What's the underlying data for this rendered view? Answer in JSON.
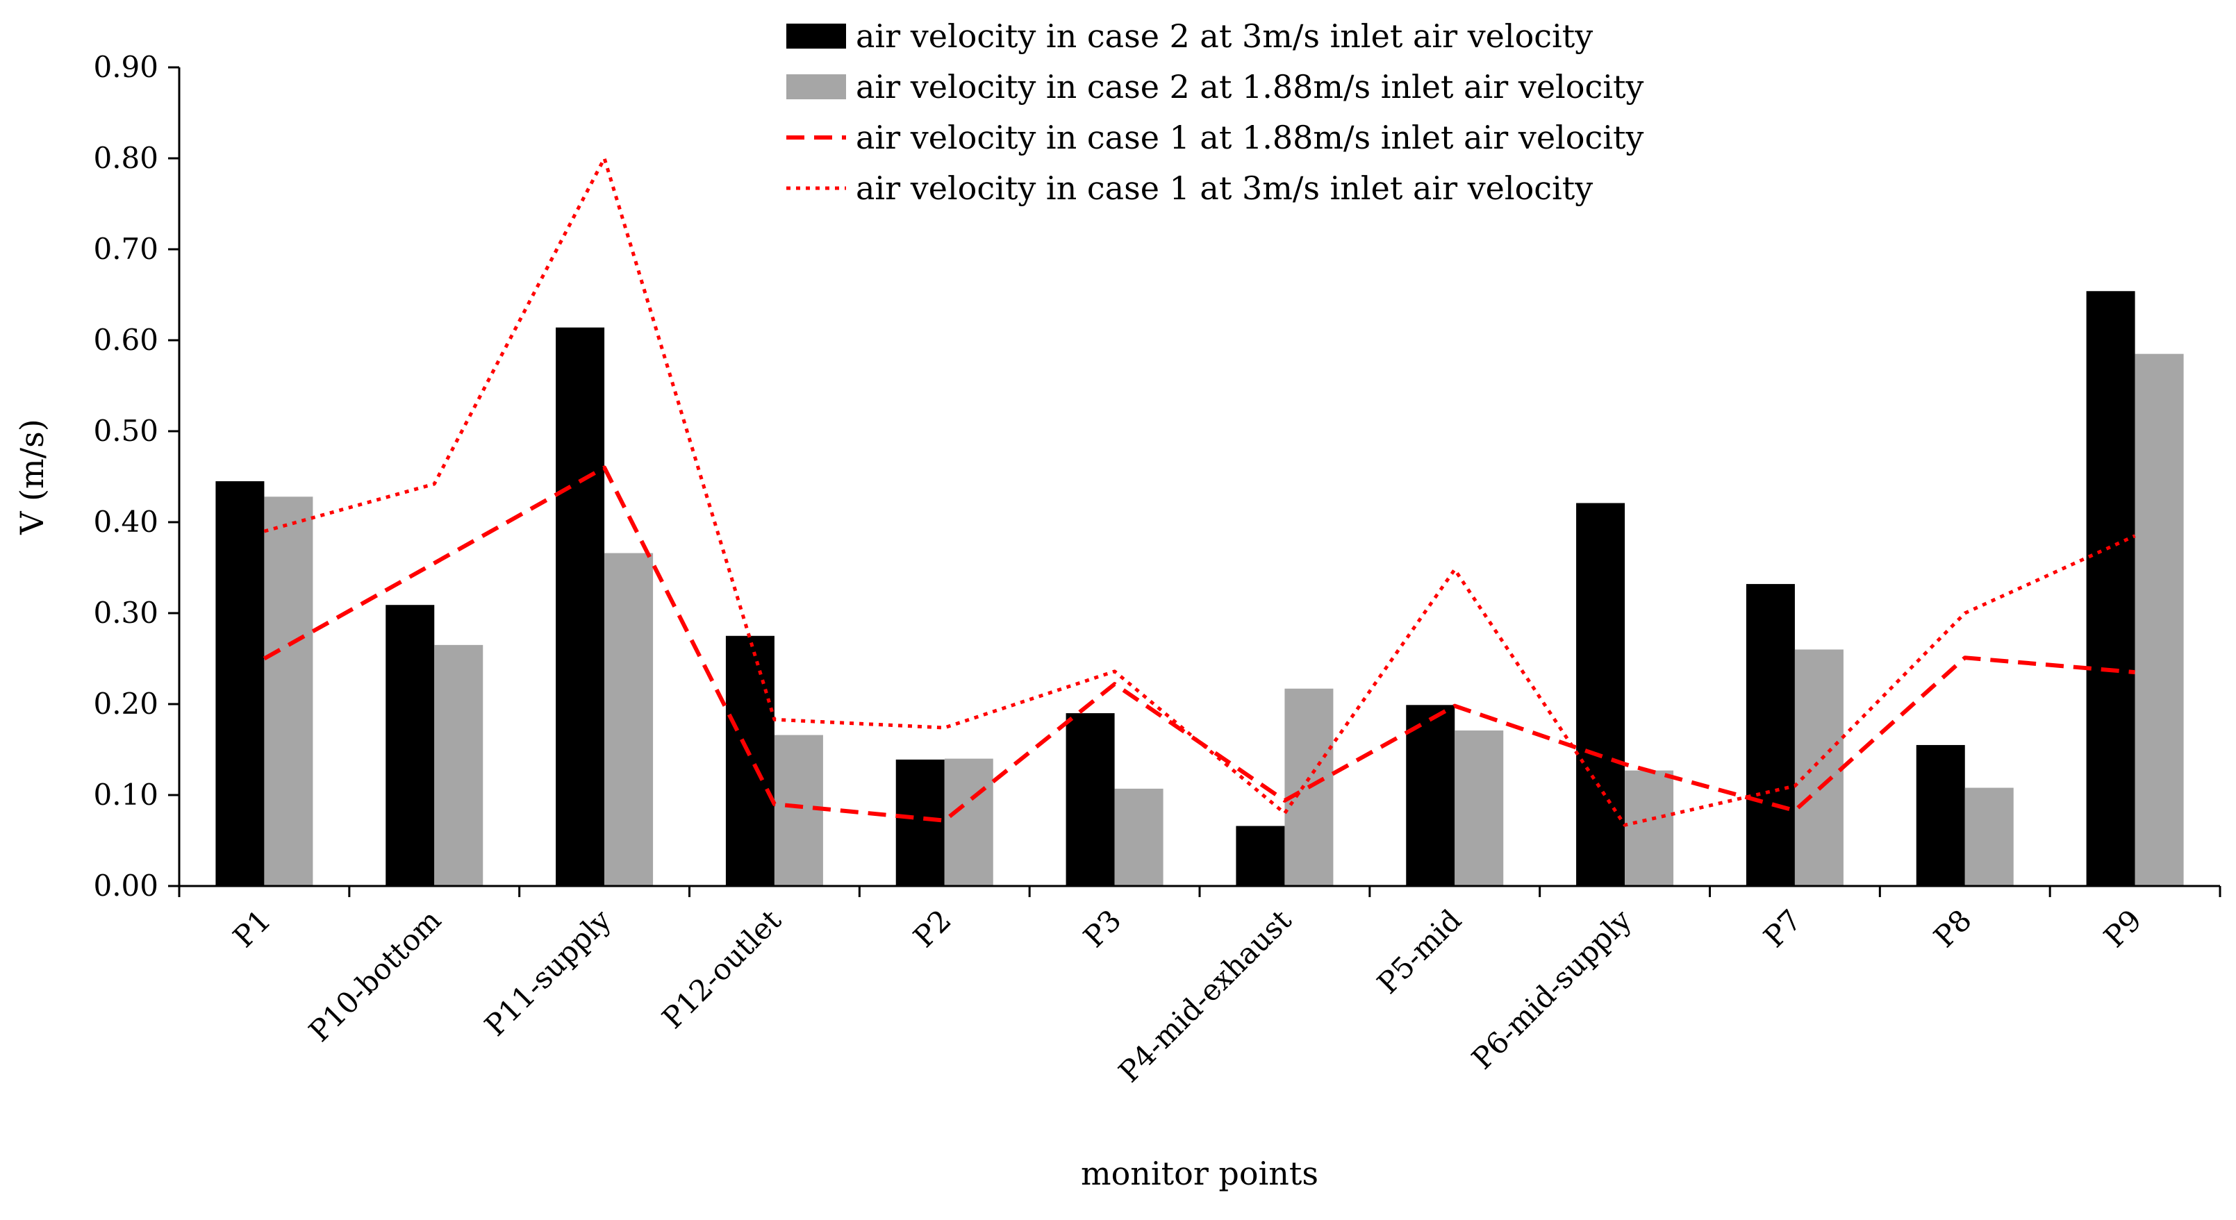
{
  "chart_data": {
    "type": "bar",
    "title": "",
    "xlabel": "monitor points",
    "ylabel": "V (m/s)",
    "ylim": [
      0,
      0.9
    ],
    "yticks": [
      "0.00",
      "0.10",
      "0.20",
      "0.30",
      "0.40",
      "0.50",
      "0.60",
      "0.70",
      "0.80",
      "0.90"
    ],
    "categories": [
      "P1",
      "P10-bottom",
      "P11-supply",
      "P12-outlet",
      "P2",
      "P3",
      "P4-mid-exhaust",
      "P5-mid",
      "P6-mid-supply",
      "P7",
      "P8",
      "P9"
    ],
    "legend_position": "top-center",
    "series": [
      {
        "name": "air velocity in case 2 at 3m/s inlet air velocity",
        "kind": "bar",
        "color": "#000000",
        "values": [
          0.445,
          0.309,
          0.614,
          0.275,
          0.139,
          0.19,
          0.066,
          0.199,
          0.421,
          0.332,
          0.155,
          0.654
        ]
      },
      {
        "name": "air velocity in case 2 at 1.88m/s inlet air velocity",
        "kind": "bar",
        "color": "#a6a6a6",
        "values": [
          0.428,
          0.265,
          0.366,
          0.166,
          0.14,
          0.107,
          0.217,
          0.171,
          0.127,
          0.26,
          0.108,
          0.585
        ]
      },
      {
        "name": "air velocity in case 1 at 1.88m/s inlet air velocity",
        "kind": "line",
        "style": "dashed",
        "color": "#ff0000",
        "values": [
          0.25,
          0.355,
          0.46,
          0.09,
          0.072,
          0.222,
          0.094,
          0.198,
          0.134,
          0.083,
          0.251,
          0.235
        ]
      },
      {
        "name": "air velocity in case 1 at 3m/s inlet air velocity",
        "kind": "line",
        "style": "dotted",
        "color": "#ff0000",
        "values": [
          0.39,
          0.442,
          0.8,
          0.183,
          0.174,
          0.236,
          0.08,
          0.348,
          0.067,
          0.11,
          0.3,
          0.385
        ]
      }
    ]
  }
}
